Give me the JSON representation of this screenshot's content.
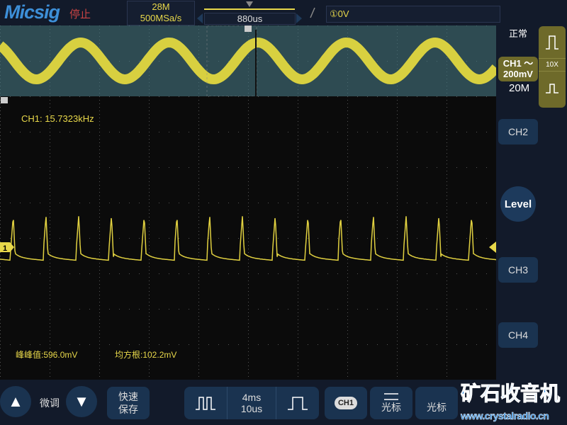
{
  "header": {
    "brand": "Micsig",
    "run_state": "停止",
    "memory_depth": "28M",
    "sample_rate": "500MSa/s",
    "trigger_position": "880us",
    "trigger_source_level": "①0V",
    "trigger_edge": "rising"
  },
  "right_panel": {
    "trigger_mode": "正常",
    "ch1_label": "CH1 ～",
    "ch1_scale": "200mV",
    "bandwidth": "20M",
    "probe": "10X",
    "ch2": "CH2",
    "level": "Level",
    "ch3": "CH3",
    "ch4": "CH4"
  },
  "main": {
    "frequency": "CH1: 15.7323kHz",
    "peak_to_peak": "峰峰值:596.0mV",
    "rms": "均方根:102.2mV",
    "ch1_marker": "1",
    "trace_color": "#e8d84a"
  },
  "bottom": {
    "fine_adjust": "微调",
    "quick_save_1": "快速",
    "quick_save_2": "保存",
    "timebase_1": "4ms",
    "timebase_2": "10us",
    "ch1_badge": "CH1",
    "cursor": "光标",
    "cursor2": "光标",
    "watermark_cn": "矿石收音机",
    "watermark_url": "www.crystalradio.cn"
  }
}
